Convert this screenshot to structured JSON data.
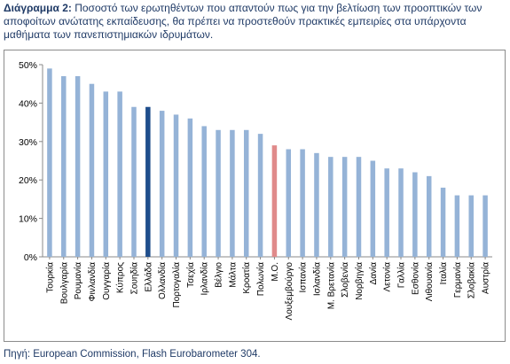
{
  "caption": {
    "lead": "Διάγραμμα 2:",
    "text": " Ποσοστό των ερωτηθέντων που απαντούν πως για την βελτίωση των προοπτικών των αποφοίτων ανώτατης εκπαίδευσης, θα πρέπει να προστεθούν πρακτικές εμπειρίες στα υπάρχοντα μαθήματα των πανεπιστημιακών ιδρυμάτων."
  },
  "source": "Πηγή: European Commission, Flash Eurobarometer 304.",
  "colors": {
    "bar": "#95b3d7",
    "highlight_greece": "#1f4e8c",
    "highlight_average": "#e08a8a"
  },
  "chart_data": {
    "type": "bar",
    "title": "",
    "xlabel": "",
    "ylabel": "",
    "ylim": [
      0,
      50
    ],
    "yticks": [
      "0%",
      "10%",
      "20%",
      "30%",
      "40%",
      "50%"
    ],
    "grid": false,
    "categories": [
      "Τουρκία",
      "Βουλγαρία",
      "Ρουμανία",
      "Φινλανδία",
      "Ουγγαρία",
      "Κύπρος",
      "Σουηδία",
      "Ελλάδα",
      "Ολλανδία",
      "Πορτογαλία",
      "Τσεχία",
      "Ιρλανδία",
      "Βέλγιο",
      "Μάλτα",
      "Κροατία",
      "Πολωνία",
      "Μ.Ο.",
      "Λουξεμβούργο",
      "Ισπανία",
      "Ισλανδία",
      "Μ. Βρετανία",
      "Σλοβενία",
      "Νορβηγία",
      "Δανία",
      "Λετονία",
      "Γαλλία",
      "Εσθονία",
      "Λιθουανία",
      "Ιταλία",
      "Γερμανία",
      "Σλοβακία",
      "Αυστρία"
    ],
    "values": [
      49,
      47,
      47,
      45,
      43,
      43,
      39,
      39,
      38,
      37,
      36,
      34,
      33,
      33,
      33,
      32,
      29,
      28,
      28,
      27,
      26,
      26,
      26,
      25,
      23,
      23,
      22,
      21,
      18,
      16,
      16,
      16
    ],
    "highlight": {
      "Ελλάδα": "highlight_greece",
      "Μ.Ο.": "highlight_average"
    }
  }
}
